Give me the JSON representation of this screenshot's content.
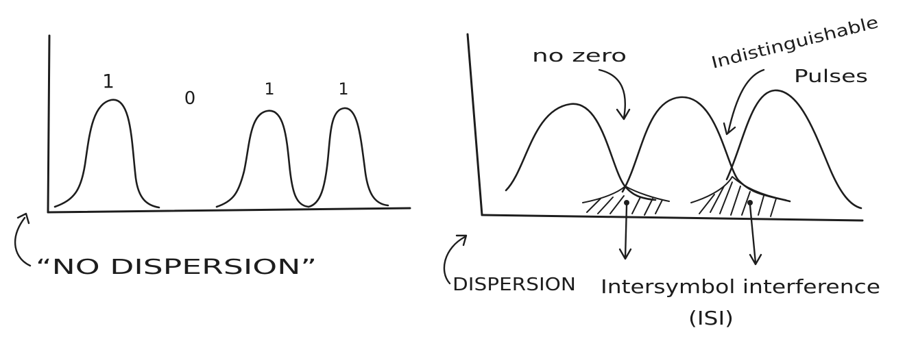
{
  "left_panel": {
    "bit_labels": [
      "1",
      "0",
      "1",
      "1"
    ],
    "caption": "“NO DISPERSION”"
  },
  "right_panel": {
    "caption": "DISPERSION",
    "annotation_no_zero": "no zero",
    "annotation_indistinguishable": [
      "Indistinguishable",
      "Pulses"
    ],
    "isi_label": "Intersymbol interference",
    "isi_abbrev": "(ISI)"
  }
}
